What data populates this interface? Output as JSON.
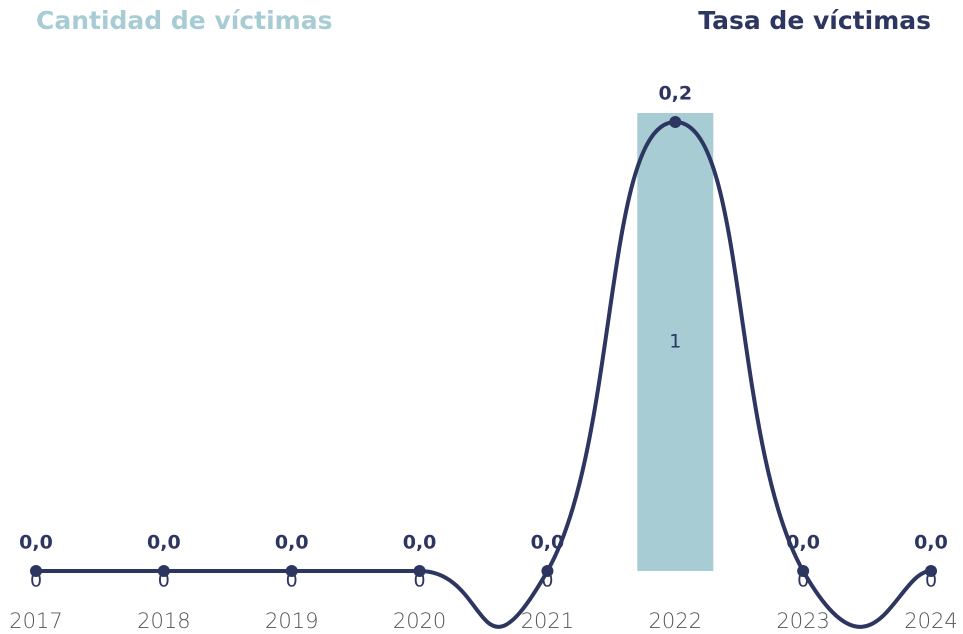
{
  "chart_data": {
    "type": "combo",
    "categories": [
      "2017",
      "2018",
      "2019",
      "2020",
      "2021",
      "2022",
      "2023",
      "2024"
    ],
    "series": [
      {
        "name": "Cantidad de víctimas",
        "type": "bar",
        "color": "#a8ccd4",
        "values": [
          0,
          0,
          0,
          0,
          0,
          1,
          0,
          0
        ]
      },
      {
        "name": "Tasa de víctimas",
        "type": "line",
        "axis": "y2",
        "color": "#2d3561",
        "values": [
          0,
          0,
          0,
          0,
          0,
          0.2,
          0,
          0
        ],
        "value_labels": [
          "0,0",
          "0,0",
          "0,0",
          "0,0",
          "0,0",
          "0,2",
          "0,0",
          "0,0"
        ]
      }
    ],
    "ylim": [
      0,
      1
    ],
    "y2lim": [
      0,
      0.2
    ]
  }
}
